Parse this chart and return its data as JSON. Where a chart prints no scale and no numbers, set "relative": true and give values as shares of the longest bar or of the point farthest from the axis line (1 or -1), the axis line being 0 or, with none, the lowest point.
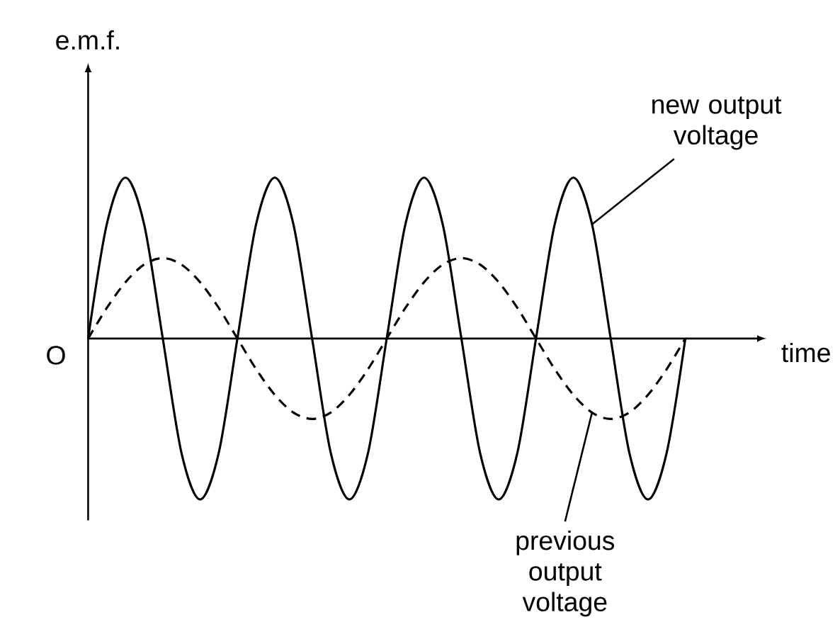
{
  "chart_data": {
    "type": "line",
    "relative": true,
    "xlabel": "time",
    "ylabel": "e.m.f.",
    "annotations": [
      "O"
    ],
    "categories": [
      null,
      null,
      null,
      null,
      null,
      null,
      null,
      null,
      null,
      null,
      null,
      null,
      null,
      null,
      null,
      null,
      null,
      null,
      null,
      null,
      null,
      null,
      null,
      null,
      null,
      null,
      null,
      null,
      null,
      null,
      null,
      null,
      null
    ],
    "series": [
      {
        "name": "new output voltage",
        "color": "#000000",
        "line_style": "solid",
        "values": [
          0,
          0.71,
          1,
          0.71,
          0,
          -0.71,
          -1,
          -0.71,
          0,
          0.71,
          1,
          0.71,
          0,
          -0.71,
          -1,
          -0.71,
          0,
          0.71,
          1,
          0.71,
          0,
          -0.71,
          -1,
          -0.71,
          0,
          0.71,
          1,
          0.71,
          0,
          -0.71,
          -1,
          -0.71,
          0
        ]
      },
      {
        "name": "previous output voltage",
        "color": "#000000",
        "line_style": "dashed",
        "values": [
          0,
          0.19,
          0.35,
          0.46,
          0.5,
          0.46,
          0.35,
          0.19,
          0,
          -0.19,
          -0.35,
          -0.46,
          -0.5,
          -0.46,
          -0.35,
          -0.19,
          0,
          0.19,
          0.35,
          0.46,
          0.5,
          0.46,
          0.35,
          0.19,
          0,
          -0.19,
          -0.35,
          -0.46,
          -0.5,
          -0.46,
          -0.35,
          -0.19,
          0
        ]
      }
    ]
  }
}
